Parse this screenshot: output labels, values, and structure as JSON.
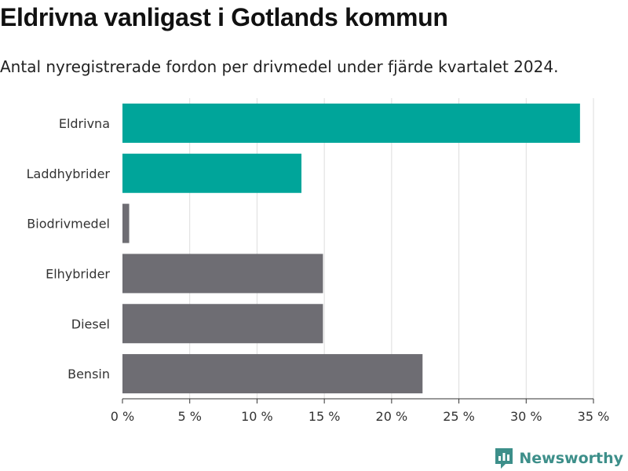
{
  "header": {
    "title": "Eldrivna vanligast i Gotlands kommun",
    "subtitle": "Antal nyregistrerade fordon per drivmedel under fjärde kvartalet 2024."
  },
  "brand": {
    "name": "Newsworthy",
    "color": "#3d8f8a",
    "icon": "newsworthy-logo-icon"
  },
  "colors": {
    "highlight": "#00a59a",
    "default": "#6e6d73",
    "grid": "#dddddd",
    "axis": "#333333"
  },
  "chart_data": {
    "type": "bar",
    "orientation": "horizontal",
    "categories": [
      "Eldrivna",
      "Laddhybrider",
      "Biodrivmedel",
      "Elhybrider",
      "Diesel",
      "Bensin"
    ],
    "values": [
      34.0,
      13.3,
      0.5,
      14.9,
      14.9,
      22.3
    ],
    "bar_colors": [
      "#00a59a",
      "#00a59a",
      "#6e6d73",
      "#6e6d73",
      "#6e6d73",
      "#6e6d73"
    ],
    "xlim": [
      0,
      35
    ],
    "xticks": [
      0,
      5,
      10,
      15,
      20,
      25,
      30,
      35
    ],
    "xtick_labels": [
      "0 %",
      "5 %",
      "10 %",
      "15 %",
      "20 %",
      "25 %",
      "30 %",
      "35 %"
    ],
    "grid": "vertical",
    "legend": "none"
  }
}
